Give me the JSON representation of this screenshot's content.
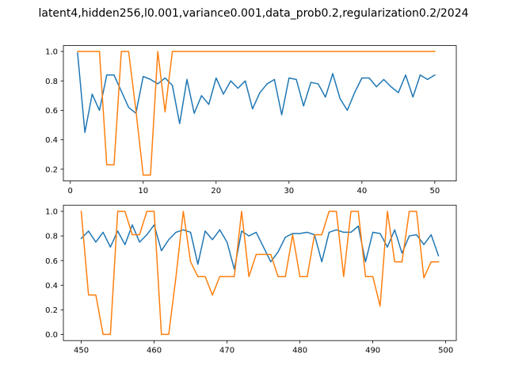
{
  "chart_data": [
    {
      "type": "line",
      "title": "latent4,hidden256,l0.001,variance0.001,data_prob0.2,regularization0.2/2024",
      "xlabel": "",
      "ylabel": "",
      "xlim": [
        -0.95,
        52.95
      ],
      "ylim": [
        0.12,
        1.04
      ],
      "xticks": [
        0,
        10,
        20,
        30,
        40,
        50
      ],
      "yticks": [
        0.2,
        0.4,
        0.6,
        0.8,
        1.0
      ],
      "grid": false,
      "series": [
        {
          "color": "#1f77b4",
          "x": [
            1,
            2,
            3,
            4,
            5,
            6,
            7,
            8,
            9,
            10,
            11,
            12,
            13,
            14,
            15,
            16,
            17,
            18,
            19,
            20,
            21,
            22,
            23,
            24,
            25,
            26,
            27,
            28,
            29,
            30,
            31,
            32,
            33,
            34,
            35,
            36,
            37,
            38,
            39,
            40,
            41,
            42,
            43,
            44,
            45,
            46,
            47,
            48,
            49,
            50
          ],
          "values": [
            0.99,
            0.45,
            0.71,
            0.6,
            0.84,
            0.84,
            0.73,
            0.62,
            0.58,
            0.83,
            0.81,
            0.78,
            0.82,
            0.77,
            0.51,
            0.81,
            0.58,
            0.7,
            0.64,
            0.82,
            0.71,
            0.8,
            0.75,
            0.8,
            0.61,
            0.72,
            0.78,
            0.81,
            0.57,
            0.82,
            0.81,
            0.63,
            0.79,
            0.78,
            0.69,
            0.85,
            0.68,
            0.6,
            0.72,
            0.82,
            0.82,
            0.76,
            0.81,
            0.76,
            0.72,
            0.84,
            0.69,
            0.84,
            0.81,
            0.84
          ]
        },
        {
          "color": "#ff7f0e",
          "x": [
            1,
            2,
            3,
            4,
            5,
            6,
            7,
            8,
            9,
            10,
            11,
            12,
            13,
            14,
            15,
            16,
            17,
            18,
            19,
            20,
            21,
            22,
            23,
            24,
            25,
            26,
            27,
            28,
            29,
            30,
            31,
            32,
            33,
            34,
            35,
            36,
            37,
            38,
            39,
            40,
            41,
            42,
            43,
            44,
            45,
            46,
            47,
            48,
            49,
            50
          ],
          "values": [
            1.0,
            1.0,
            1.0,
            1.0,
            0.23,
            0.23,
            1.0,
            1.0,
            0.6,
            0.16,
            0.16,
            1.0,
            0.59,
            1.0,
            1.0,
            1.0,
            1.0,
            1.0,
            1.0,
            1.0,
            1.0,
            1.0,
            1.0,
            1.0,
            1.0,
            1.0,
            1.0,
            1.0,
            1.0,
            1.0,
            1.0,
            1.0,
            1.0,
            1.0,
            1.0,
            1.0,
            1.0,
            1.0,
            1.0,
            1.0,
            1.0,
            1.0,
            1.0,
            1.0,
            1.0,
            1.0,
            1.0,
            1.0,
            1.0,
            1.0
          ]
        }
      ]
    },
    {
      "type": "line",
      "title": "",
      "xlabel": "",
      "ylabel": "",
      "xlim": [
        447.55,
        501.45
      ],
      "ylim": [
        -0.05,
        1.05
      ],
      "xticks": [
        450,
        460,
        470,
        480,
        490,
        500
      ],
      "yticks": [
        0.0,
        0.2,
        0.4,
        0.6,
        0.8,
        1.0
      ],
      "grid": false,
      "series": [
        {
          "color": "#1f77b4",
          "x": [
            450,
            451,
            452,
            453,
            454,
            455,
            456,
            457,
            458,
            459,
            460,
            461,
            462,
            463,
            464,
            465,
            466,
            467,
            468,
            469,
            470,
            471,
            472,
            473,
            474,
            475,
            476,
            477,
            478,
            479,
            480,
            481,
            482,
            483,
            484,
            485,
            486,
            487,
            488,
            489,
            490,
            491,
            492,
            493,
            494,
            495,
            496,
            497,
            498,
            499
          ],
          "values": [
            0.78,
            0.84,
            0.75,
            0.83,
            0.71,
            0.84,
            0.73,
            0.89,
            0.75,
            0.81,
            0.89,
            0.68,
            0.77,
            0.83,
            0.85,
            0.83,
            0.57,
            0.84,
            0.77,
            0.85,
            0.75,
            0.53,
            0.84,
            0.8,
            0.83,
            0.71,
            0.59,
            0.67,
            0.79,
            0.82,
            0.82,
            0.83,
            0.81,
            0.59,
            0.83,
            0.85,
            0.83,
            0.83,
            0.88,
            0.59,
            0.83,
            0.82,
            0.71,
            0.85,
            0.66,
            0.8,
            0.81,
            0.73,
            0.81,
            0.64
          ]
        },
        {
          "color": "#ff7f0e",
          "x": [
            450,
            451,
            452,
            453,
            454,
            455,
            456,
            457,
            458,
            459,
            460,
            461,
            462,
            463,
            464,
            465,
            466,
            467,
            468,
            469,
            470,
            471,
            472,
            473,
            474,
            475,
            476,
            477,
            478,
            479,
            480,
            481,
            482,
            483,
            484,
            485,
            486,
            487,
            488,
            489,
            490,
            491,
            492,
            493,
            494,
            495,
            496,
            497,
            498,
            499
          ],
          "values": [
            1.0,
            0.32,
            0.32,
            0.0,
            0.0,
            1.0,
            1.0,
            0.81,
            0.81,
            1.0,
            1.0,
            0.0,
            0.0,
            0.47,
            1.0,
            0.59,
            0.47,
            0.47,
            0.32,
            0.47,
            0.47,
            0.47,
            1.0,
            0.47,
            0.65,
            0.65,
            0.65,
            0.47,
            0.47,
            0.81,
            0.47,
            0.47,
            0.81,
            0.81,
            1.0,
            1.0,
            0.47,
            1.0,
            1.0,
            0.47,
            0.47,
            0.23,
            1.0,
            0.59,
            0.59,
            1.0,
            1.0,
            0.46,
            0.59,
            0.59
          ]
        }
      ]
    }
  ]
}
